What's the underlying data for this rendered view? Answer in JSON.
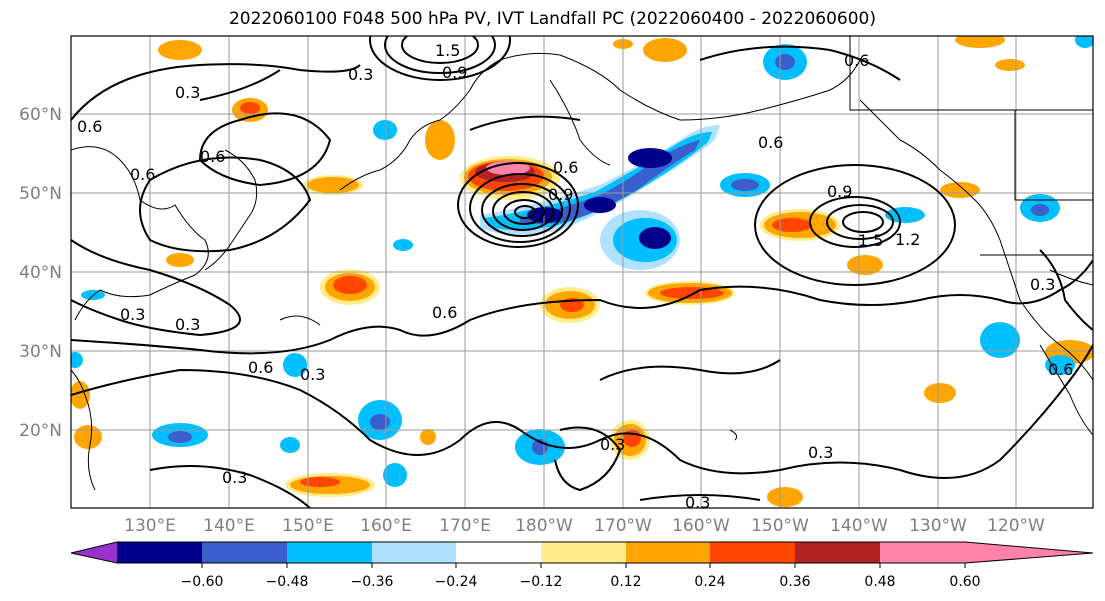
{
  "title": "2022060100 F048 500 hPa PV, IVT Landfall PC (2022060400 - 2022060600)",
  "lat_labels": [
    "60°N",
    "50°N",
    "40°N",
    "30°N",
    "20°N"
  ],
  "lon_labels": [
    "130°E",
    "140°E",
    "150°E",
    "160°E",
    "170°E",
    "180°W",
    "170°W",
    "160°W",
    "150°W",
    "140°W",
    "130°W",
    "120°W"
  ],
  "colorbar": {
    "ticks": [
      "−0.60",
      "−0.48",
      "−0.36",
      "−0.24",
      "−0.12",
      "0.12",
      "0.24",
      "0.36",
      "0.48",
      "0.60"
    ],
    "colors": [
      "#9932cc",
      "#00008b",
      "#3a5fcd",
      "#00bfff",
      "#b0e2ff",
      "#ffffff",
      "#ffec8b",
      "#ffa500",
      "#ff4500",
      "#b22222",
      "#ff82ab"
    ]
  },
  "contour_labels": [
    "0.3",
    "0.9",
    "1.5",
    "0.6",
    "0.3",
    "0.6",
    "0.6",
    "0.9",
    "0.6",
    "0.9",
    "1.5",
    "1.2",
    "0.6",
    "0.3",
    "0.6",
    "0.3",
    "0.3",
    "0.3",
    "0.3",
    "0.3",
    "0.3",
    "0.6",
    "0.6",
    "0.6",
    "0.3"
  ]
}
